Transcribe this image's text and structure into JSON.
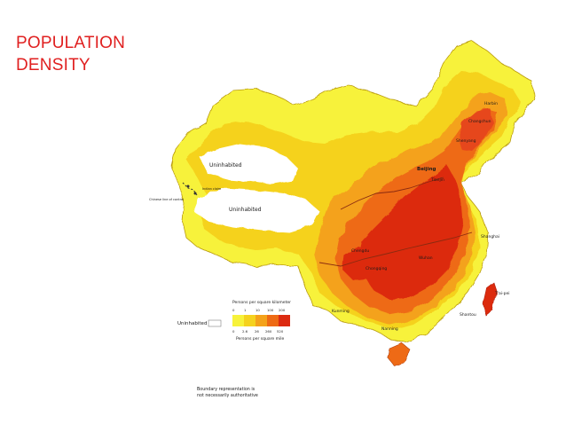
{
  "slide": {
    "title_line1": "POPULATION",
    "title_line2": "DENSITY"
  },
  "map": {
    "region_labels": {
      "uninhabited_north": "Uninhabited",
      "uninhabited_south": "Uninhabited",
      "chinese_line": "Chinese line of control",
      "indian_claim": "Indian claim"
    },
    "cities": [
      {
        "name": "Harbin"
      },
      {
        "name": "Changchun"
      },
      {
        "name": "Shenyang"
      },
      {
        "name": "Beijing"
      },
      {
        "name": "Tianjin"
      },
      {
        "name": "Shanghai"
      },
      {
        "name": "Wuhan"
      },
      {
        "name": "Chongqing"
      },
      {
        "name": "Chengdu"
      },
      {
        "name": "T'ai-pei"
      },
      {
        "name": "Shantou"
      },
      {
        "name": "Kunming"
      },
      {
        "name": "Nanning"
      }
    ],
    "colors": {
      "uninhabited": "#ffffff",
      "lt1": "#f7f23a",
      "1_10": "#f5d21e",
      "10_100": "#f4a21a",
      "100_200": "#ee6a14",
      "over_200": "#dc2a10"
    }
  },
  "legend": {
    "uninhabited_label": "Uninhabited",
    "km_title": "Persons per square kilometer",
    "km_ticks": [
      "0",
      "1",
      "10",
      "100",
      "200"
    ],
    "mile_ticks": [
      "0",
      "2.6",
      "26",
      "260",
      "520"
    ],
    "mile_title": "Persons per square mile",
    "note_line1": "Boundary representation is",
    "note_line2": "not necessarily authoritative"
  }
}
